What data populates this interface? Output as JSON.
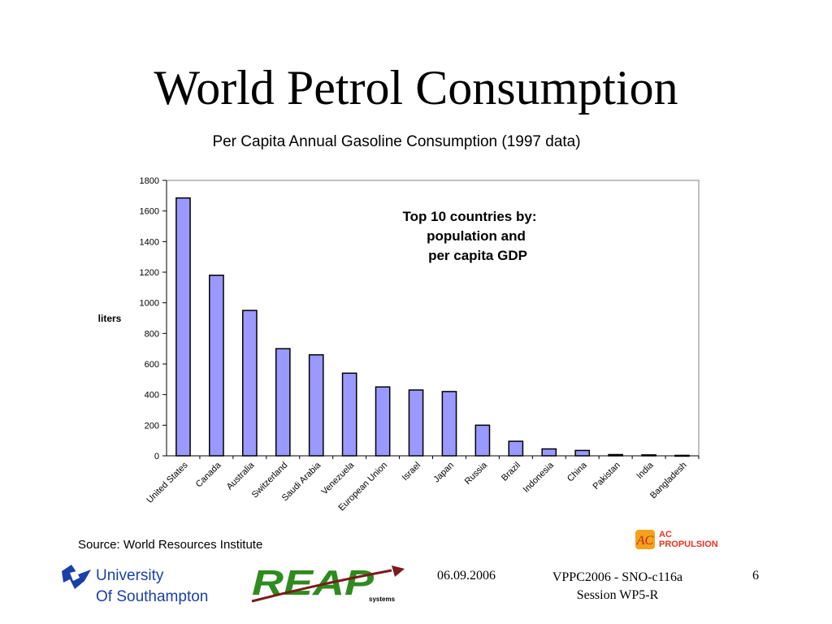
{
  "slide": {
    "title": "World Petrol Consumption",
    "source": "Source: World Resources Institute",
    "footer": {
      "date": "06.09.2006",
      "conference_line1": "VPPC2006 - SNO-c116a",
      "conference_line2": "Session WP5-R",
      "page_number": "6"
    },
    "logos": {
      "university_line1": "University",
      "university_line2": "Of Southampton",
      "reap": "REAP",
      "reap_sub": "systems",
      "acp_line1": "AC",
      "acp_line2": "PROPULSION"
    }
  },
  "colors": {
    "bar_fill": "#9999ff",
    "bar_stroke": "#000000",
    "plot_border": "#808080",
    "university_blue": "#1a3fa8",
    "reap_green": "#2e8b1e",
    "reap_arrow": "#7a1a1a",
    "acp_red": "#e8341c"
  },
  "chart_data": {
    "type": "bar",
    "title": "Per Capita Annual Gasoline Consumption (1997 data)",
    "ylabel": "liters",
    "xlabel": "",
    "ylim": [
      0,
      1800
    ],
    "yticks": [
      0,
      200,
      400,
      600,
      800,
      1000,
      1200,
      1400,
      1600,
      1800
    ],
    "categories": [
      "United States",
      "Canada",
      "Australia",
      "Switzerland",
      "Saudi Arabia",
      "Venezuela",
      "European Union",
      "Israel",
      "Japan",
      "Russia",
      "Brazil",
      "Indonesia",
      "China",
      "Pakistan",
      "India",
      "Bangladesh"
    ],
    "values": [
      1685,
      1180,
      950,
      700,
      660,
      540,
      450,
      430,
      420,
      200,
      95,
      45,
      35,
      8,
      6,
      3
    ],
    "annotation": [
      "Top 10 countries by:",
      "population and",
      "per capita  GDP"
    ],
    "grid": false,
    "legend": "none"
  }
}
